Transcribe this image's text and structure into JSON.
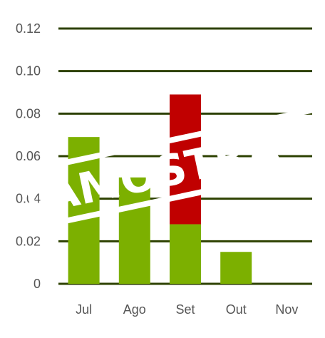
{
  "chart_data": {
    "type": "bar",
    "stacked": true,
    "categories": [
      "Jul",
      "Ago",
      "Set",
      "Out",
      "Nov"
    ],
    "series": [
      {
        "values": [
          0.069,
          0.05,
          0.028,
          0.015,
          0.0
        ]
      },
      {
        "values": [
          0.0,
          0.0,
          0.061,
          0.0,
          0.0
        ]
      }
    ],
    "yticks": [
      "0",
      "0.02",
      "0.04",
      "0.06",
      "0.08",
      "0.10",
      "0.12"
    ],
    "ylim": [
      0,
      0.12
    ],
    "grid": true,
    "colors": {
      "series": [
        "#7cb000",
        "#c00000"
      ],
      "grid": "#2d4100",
      "tick_text": "#555555"
    },
    "watermark": "AMOSTRA"
  }
}
